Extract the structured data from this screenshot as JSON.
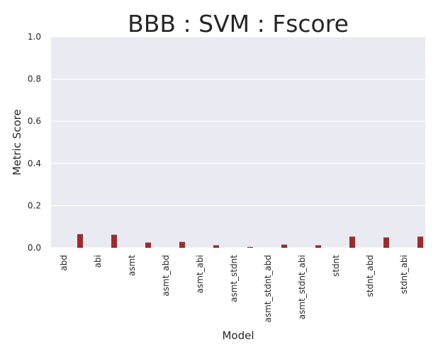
{
  "chart_data": {
    "type": "bar",
    "title": "BBB : SVM : Fscore",
    "xlabel": "Model",
    "ylabel": "Metric Score",
    "ylim": [
      0,
      1.0
    ],
    "yticks": [
      "0.0",
      "0.2",
      "0.4",
      "0.6",
      "0.8",
      "1.0"
    ],
    "categories": [
      "abd",
      "abi",
      "asmt",
      "asmt_abd",
      "asmt_abi",
      "asmt_stdnt",
      "asmt_stdnt_abd",
      "asmt_stdnt_abi",
      "stdnt",
      "stdnt_abd",
      "stdnt_abi"
    ],
    "values": [
      0.065,
      0.062,
      0.025,
      0.028,
      0.012,
      0.004,
      0.015,
      0.012,
      0.053,
      0.049,
      0.053
    ],
    "grid": true,
    "bar_color": "#a02b2d",
    "background_color": "#eaeaf2"
  }
}
